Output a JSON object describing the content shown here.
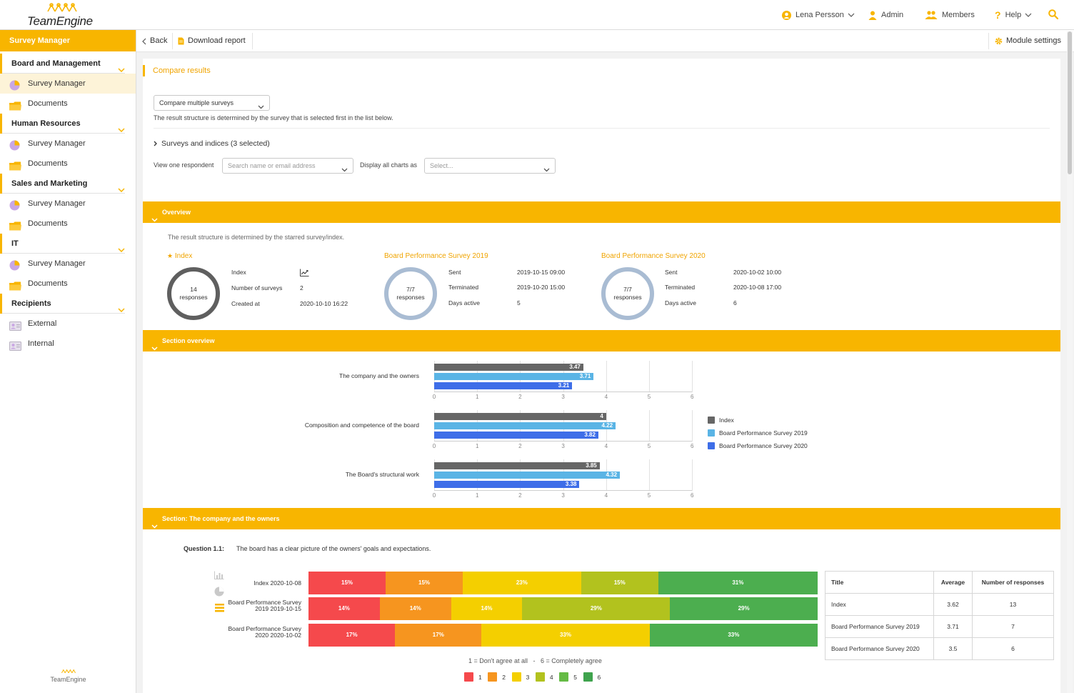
{
  "app": {
    "name": "TeamEngine"
  },
  "topnav": {
    "user": "Lena Persson",
    "admin": "Admin",
    "members": "Members",
    "help": "Help"
  },
  "sidebar": {
    "title": "Survey Manager",
    "groups": [
      {
        "label": "Board and Management",
        "items": [
          "Survey Manager",
          "Documents"
        ]
      },
      {
        "label": "Human Resources",
        "items": [
          "Survey Manager",
          "Documents"
        ]
      },
      {
        "label": "Sales and Marketing",
        "items": [
          "Survey Manager",
          "Documents"
        ]
      },
      {
        "label": "IT",
        "items": [
          "Survey Manager",
          "Documents"
        ]
      },
      {
        "label": "Recipients",
        "items": [
          "External",
          "Internal"
        ]
      }
    ],
    "footer": "TeamEngine"
  },
  "toolbar": {
    "back": "Back",
    "download": "Download report",
    "module_settings": "Module settings"
  },
  "page": {
    "title": "Compare results",
    "compare_select": "Compare multiple surveys",
    "structure_note": "The result structure is determined by the survey that is selected first in the list below.",
    "surveys_toggle": "Surveys and indices (3 selected)",
    "respondent_label": "View one respondent",
    "respondent_placeholder": "Search name or email address",
    "display_label": "Display all charts as",
    "display_placeholder": "Select..."
  },
  "overview": {
    "header": "Overview",
    "note": "The result structure is determined by the starred survey/index.",
    "index": {
      "title": "Index",
      "responses": "14",
      "responses_label": "responses",
      "rows": [
        {
          "k": "Index",
          "v": ""
        },
        {
          "k": "Number of surveys",
          "v": "2"
        },
        {
          "k": "Created at",
          "v": "2020-10-10 16:22"
        }
      ]
    },
    "survey2019": {
      "title": "Board Performance Survey 2019",
      "responses": "7/7",
      "responses_label": "responses",
      "rows": [
        {
          "k": "Sent",
          "v": "2019-10-15 09:00"
        },
        {
          "k": "Terminated",
          "v": "2019-10-20 15:00"
        },
        {
          "k": "Days active",
          "v": "5"
        }
      ]
    },
    "survey2020": {
      "title": "Board Performance Survey 2020",
      "responses": "7/7",
      "responses_label": "responses",
      "rows": [
        {
          "k": "Sent",
          "v": "2020-10-02 10:00"
        },
        {
          "k": "Terminated",
          "v": "2020-10-08 17:00"
        },
        {
          "k": "Days active",
          "v": "6"
        }
      ]
    }
  },
  "section_overview": {
    "header": "Section overview"
  },
  "section_company": {
    "header": "Section: The company and the owners"
  },
  "question": {
    "label": "Question 1.1:",
    "text": "The board has a clear picture of the owners' goals and expectations.",
    "scale_note": "1 = Don't agree at all   -   6 = Completely agree"
  },
  "chart_data": [
    {
      "type": "bar",
      "orientation": "horizontal",
      "categories": [
        "The company and the owners",
        "Composition and competence of the board",
        "The Board's structural work"
      ],
      "series": [
        {
          "name": "Index",
          "values": [
            3.47,
            4,
            3.85
          ],
          "color": "#666666"
        },
        {
          "name": "Board Performance Survey 2019",
          "values": [
            3.71,
            4.22,
            4.32
          ],
          "color": "#5ab4e5"
        },
        {
          "name": "Board Performance Survey 2020",
          "values": [
            3.21,
            3.82,
            3.38
          ],
          "color": "#3e6ee8"
        }
      ],
      "xlim": [
        0,
        6
      ],
      "ticks": [
        "0",
        "1",
        "2",
        "3",
        "4",
        "5",
        "6"
      ],
      "legend": "right"
    },
    {
      "type": "bar",
      "orientation": "horizontal",
      "stacked": true,
      "percent": true,
      "rows": [
        {
          "label": "Index 2020-10-08",
          "values": [
            15,
            15,
            23,
            15,
            31
          ]
        },
        {
          "label": "Board Performance Survey 2019 2019-10-15",
          "values": [
            14,
            14,
            14,
            29,
            29
          ]
        },
        {
          "label": "Board Performance Survey 2020 2020-10-02",
          "values": [
            17,
            17,
            33,
            0,
            33
          ]
        }
      ],
      "segment_colors": [
        "#f5494c",
        "#f6951f",
        "#f4cf00",
        "#b2c21e",
        "#4cae4f"
      ],
      "legend_items": [
        {
          "label": "1",
          "color": "#f5494c"
        },
        {
          "label": "2",
          "color": "#f6951f"
        },
        {
          "label": "3",
          "color": "#f4cf00"
        },
        {
          "label": "4",
          "color": "#b2c21e"
        },
        {
          "label": "5",
          "color": "#65bb45"
        },
        {
          "label": "6",
          "color": "#3fa34d"
        }
      ]
    }
  ],
  "results_table": {
    "headers": [
      "Title",
      "Average",
      "Number of responses"
    ],
    "rows": [
      [
        "Index",
        "3.62",
        "13"
      ],
      [
        "Board Performance Survey 2019",
        "3.71",
        "7"
      ],
      [
        "Board Performance Survey 2020",
        "3.5",
        "6"
      ]
    ]
  },
  "colors": {
    "accent": "#f8b500",
    "accent_text": "#f0a400"
  }
}
